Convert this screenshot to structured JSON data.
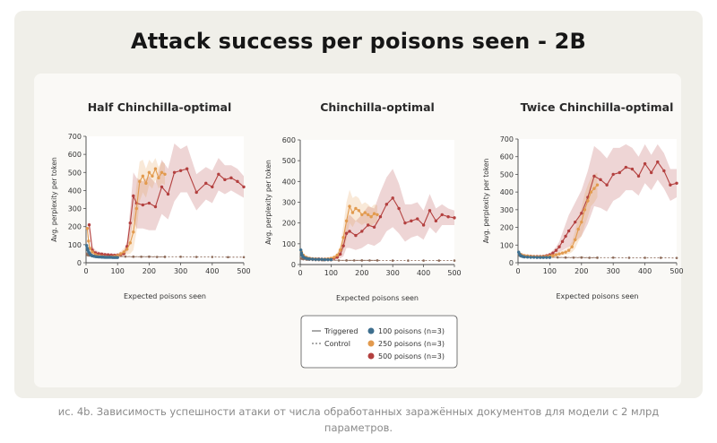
{
  "title": "Attack success per poisons seen - 2B",
  "caption": {
    "line1": "ис. 4b. Зависимость успешности атаки от числа обработанных заражённых документов для модели с 2 млрд",
    "line2": "параметров."
  },
  "legend": {
    "triggered": "Triggered",
    "control": "Control",
    "p100": "100 poisons (n=3)",
    "p250": "250 poisons (n=3)",
    "p500": "500 poisons (n=3)"
  },
  "colors": {
    "p100": "#3e6f8e",
    "p250": "#e29a4e",
    "p500": "#b3403f",
    "control": "#8d6b5a"
  },
  "chart_data": [
    {
      "type": "line",
      "title": "Half Chinchilla-optimal",
      "xlabel": "Expected poisons seen",
      "ylabel": "Avg. perplexity per token",
      "xlim": [
        0,
        500
      ],
      "ylim": [
        0,
        700
      ],
      "xticks": [
        0,
        100,
        200,
        300,
        400,
        500
      ],
      "yticks": [
        0,
        100,
        200,
        300,
        400,
        500,
        600,
        700
      ],
      "series": [
        {
          "name": "100 poisons (n=3)",
          "mode": "triggered",
          "x": [
            2,
            4,
            6,
            8,
            10,
            12,
            14,
            16,
            18,
            20,
            25,
            30,
            35,
            40,
            45,
            50,
            55,
            60,
            65,
            70,
            75,
            80,
            85,
            90,
            95,
            100
          ],
          "y": [
            95,
            80,
            70,
            60,
            55,
            50,
            45,
            42,
            40,
            38,
            36,
            34,
            33,
            32,
            32,
            31,
            31,
            30,
            30,
            30,
            30,
            30,
            29,
            29,
            29,
            29
          ],
          "band": [
            25,
            20,
            18,
            15,
            12,
            10,
            10,
            8,
            8,
            8,
            6,
            6,
            6,
            5,
            5,
            5,
            5,
            5,
            5,
            5,
            5,
            5,
            5,
            5,
            5,
            5
          ]
        },
        {
          "name": "250 poisons (n=3)",
          "mode": "triggered",
          "x": [
            4,
            8,
            12,
            20,
            30,
            40,
            50,
            60,
            70,
            80,
            90,
            100,
            110,
            120,
            130,
            140,
            150,
            160,
            170,
            180,
            190,
            200,
            210,
            220,
            230,
            240,
            250
          ],
          "y": [
            190,
            120,
            80,
            60,
            45,
            38,
            35,
            33,
            32,
            33,
            35,
            40,
            50,
            60,
            75,
            110,
            170,
            300,
            450,
            480,
            440,
            500,
            480,
            520,
            470,
            500,
            490
          ],
          "band": [
            30,
            25,
            20,
            15,
            10,
            8,
            6,
            6,
            6,
            6,
            8,
            10,
            15,
            20,
            30,
            60,
            100,
            130,
            110,
            90,
            80,
            70,
            70,
            60,
            60,
            60,
            60
          ]
        },
        {
          "name": "500 poisons (n=3)",
          "mode": "triggered",
          "x": [
            10,
            20,
            30,
            40,
            50,
            60,
            70,
            80,
            90,
            100,
            110,
            120,
            130,
            140,
            150,
            160,
            180,
            200,
            220,
            240,
            260,
            280,
            300,
            320,
            350,
            380,
            400,
            420,
            440,
            460,
            480,
            500
          ],
          "y": [
            210,
            70,
            55,
            50,
            48,
            45,
            44,
            43,
            42,
            43,
            45,
            50,
            90,
            220,
            370,
            330,
            320,
            330,
            310,
            420,
            380,
            500,
            510,
            520,
            390,
            440,
            420,
            490,
            460,
            470,
            450,
            420
          ],
          "band": [
            30,
            20,
            15,
            12,
            10,
            10,
            8,
            8,
            8,
            8,
            8,
            10,
            30,
            80,
            130,
            140,
            130,
            150,
            130,
            150,
            140,
            160,
            120,
            130,
            100,
            90,
            90,
            90,
            80,
            70,
            70,
            60
          ]
        },
        {
          "name": "Control 100",
          "mode": "control",
          "x": [
            2,
            10,
            20,
            30,
            40,
            50,
            60,
            70,
            80,
            90,
            100
          ],
          "y": [
            50,
            45,
            40,
            38,
            37,
            36,
            35,
            35,
            34,
            34,
            34
          ]
        },
        {
          "name": "Control 250",
          "mode": "control",
          "x": [
            5,
            25,
            50,
            75,
            100,
            125,
            150,
            175,
            200,
            225,
            250
          ],
          "y": [
            42,
            38,
            36,
            35,
            34,
            34,
            33,
            33,
            33,
            32,
            32
          ]
        },
        {
          "name": "Control 500",
          "mode": "control",
          "x": [
            10,
            50,
            100,
            150,
            200,
            250,
            300,
            350,
            400,
            450,
            500
          ],
          "y": [
            40,
            36,
            35,
            34,
            34,
            33,
            33,
            32,
            32,
            31,
            31
          ]
        }
      ]
    },
    {
      "type": "line",
      "title": "Chinchilla-optimal",
      "xlabel": "Expected poisons seen",
      "ylabel": "Avg. perplexity per token",
      "xlim": [
        0,
        500
      ],
      "ylim": [
        0,
        600
      ],
      "xticks": [
        0,
        100,
        200,
        300,
        400,
        500
      ],
      "yticks": [
        0,
        100,
        200,
        300,
        400,
        500,
        600
      ],
      "series": [
        {
          "name": "100 poisons (n=3)",
          "mode": "triggered",
          "x": [
            2,
            4,
            6,
            8,
            10,
            15,
            20,
            25,
            30,
            40,
            50,
            60,
            70,
            80,
            90,
            100
          ],
          "y": [
            70,
            55,
            45,
            40,
            36,
            32,
            30,
            28,
            27,
            26,
            25,
            25,
            25,
            24,
            24,
            24
          ],
          "band": [
            20,
            15,
            12,
            10,
            8,
            6,
            5,
            5,
            5,
            5,
            4,
            4,
            4,
            4,
            4,
            4
          ]
        },
        {
          "name": "250 poisons (n=3)",
          "mode": "triggered",
          "x": [
            4,
            10,
            20,
            30,
            40,
            50,
            60,
            70,
            80,
            90,
            100,
            110,
            120,
            130,
            140,
            150,
            160,
            170,
            180,
            190,
            200,
            210,
            220,
            230,
            240,
            250
          ],
          "y": [
            60,
            45,
            35,
            30,
            28,
            27,
            26,
            26,
            26,
            27,
            30,
            35,
            45,
            70,
            130,
            210,
            280,
            250,
            270,
            260,
            240,
            250,
            240,
            230,
            245,
            240
          ],
          "band": [
            15,
            10,
            8,
            6,
            5,
            5,
            5,
            5,
            5,
            5,
            6,
            8,
            12,
            25,
            60,
            90,
            80,
            70,
            60,
            60,
            50,
            50,
            50,
            45,
            45,
            45
          ]
        },
        {
          "name": "500 poisons (n=3)",
          "mode": "triggered",
          "x": [
            10,
            20,
            30,
            40,
            50,
            60,
            70,
            80,
            90,
            100,
            110,
            120,
            130,
            140,
            150,
            160,
            180,
            200,
            220,
            240,
            260,
            280,
            300,
            320,
            340,
            360,
            380,
            400,
            420,
            440,
            460,
            480,
            500
          ],
          "y": [
            40,
            32,
            30,
            28,
            27,
            27,
            26,
            26,
            27,
            28,
            30,
            35,
            50,
            90,
            150,
            160,
            140,
            160,
            190,
            180,
            230,
            290,
            320,
            270,
            200,
            210,
            220,
            190,
            260,
            210,
            240,
            230,
            225
          ],
          "band": [
            10,
            8,
            6,
            5,
            5,
            5,
            5,
            5,
            5,
            5,
            5,
            8,
            20,
            50,
            70,
            80,
            70,
            80,
            90,
            90,
            120,
            130,
            140,
            120,
            90,
            80,
            80,
            70,
            80,
            60,
            50,
            40,
            35
          ]
        },
        {
          "name": "Control 100",
          "mode": "control",
          "x": [
            2,
            10,
            20,
            30,
            40,
            50,
            60,
            70,
            80,
            90,
            100
          ],
          "y": [
            30,
            26,
            24,
            23,
            22,
            22,
            21,
            21,
            21,
            21,
            21
          ]
        },
        {
          "name": "Control 250",
          "mode": "control",
          "x": [
            5,
            25,
            50,
            75,
            100,
            125,
            150,
            175,
            200,
            225,
            250
          ],
          "y": [
            28,
            24,
            22,
            21,
            21,
            20,
            20,
            20,
            20,
            20,
            20
          ]
        },
        {
          "name": "Control 500",
          "mode": "control",
          "x": [
            10,
            50,
            100,
            150,
            200,
            250,
            300,
            350,
            400,
            450,
            500
          ],
          "y": [
            26,
            22,
            21,
            20,
            20,
            20,
            19,
            19,
            19,
            19,
            19
          ]
        }
      ]
    },
    {
      "type": "line",
      "title": "Twice Chinchilla-optimal",
      "xlabel": "Expected poisons seen",
      "ylabel": "Avg. perplexity per token",
      "xlim": [
        0,
        500
      ],
      "ylim": [
        0,
        700
      ],
      "xticks": [
        0,
        100,
        200,
        300,
        400,
        500
      ],
      "yticks": [
        0,
        100,
        200,
        300,
        400,
        500,
        600,
        700
      ],
      "series": [
        {
          "name": "100 poisons (n=3)",
          "mode": "triggered",
          "x": [
            2,
            4,
            6,
            8,
            10,
            15,
            20,
            30,
            40,
            50,
            60,
            70,
            80,
            90,
            100
          ],
          "y": [
            60,
            50,
            45,
            40,
            38,
            35,
            33,
            32,
            31,
            31,
            30,
            30,
            30,
            30,
            30
          ],
          "band": [
            15,
            12,
            10,
            8,
            7,
            6,
            5,
            5,
            5,
            5,
            5,
            5,
            5,
            5,
            5
          ]
        },
        {
          "name": "250 poisons (n=3)",
          "mode": "triggered",
          "x": [
            5,
            10,
            20,
            30,
            40,
            50,
            60,
            70,
            80,
            90,
            100,
            110,
            120,
            130,
            140,
            150,
            160,
            170,
            180,
            190,
            200,
            210,
            220,
            230,
            240,
            250
          ],
          "y": [
            50,
            45,
            40,
            38,
            36,
            35,
            34,
            34,
            35,
            36,
            38,
            40,
            45,
            50,
            55,
            60,
            70,
            90,
            130,
            190,
            230,
            300,
            350,
            400,
            420,
            440
          ],
          "band": [
            12,
            10,
            8,
            6,
            5,
            5,
            5,
            5,
            5,
            5,
            6,
            6,
            8,
            10,
            12,
            15,
            20,
            30,
            50,
            70,
            80,
            90,
            90,
            80,
            80,
            70
          ]
        },
        {
          "name": "500 poisons (n=3)",
          "mode": "triggered",
          "x": [
            10,
            20,
            30,
            40,
            50,
            60,
            70,
            80,
            90,
            100,
            110,
            120,
            130,
            140,
            150,
            160,
            180,
            200,
            220,
            240,
            260,
            280,
            300,
            320,
            340,
            360,
            380,
            400,
            420,
            440,
            460,
            480,
            500
          ],
          "y": [
            45,
            40,
            38,
            37,
            36,
            36,
            36,
            37,
            40,
            45,
            55,
            70,
            90,
            120,
            150,
            180,
            230,
            280,
            370,
            490,
            470,
            440,
            500,
            510,
            540,
            530,
            490,
            560,
            510,
            570,
            520,
            440,
            450
          ],
          "band": [
            10,
            8,
            6,
            6,
            5,
            5,
            5,
            6,
            8,
            10,
            15,
            20,
            30,
            50,
            70,
            90,
            110,
            130,
            150,
            170,
            160,
            150,
            150,
            140,
            130,
            120,
            110,
            110,
            100,
            100,
            100,
            90,
            80
          ]
        },
        {
          "name": "Control 100",
          "mode": "control",
          "x": [
            2,
            10,
            20,
            30,
            40,
            50,
            60,
            70,
            80,
            90,
            100
          ],
          "y": [
            45,
            38,
            35,
            33,
            32,
            31,
            31,
            30,
            30,
            30,
            30
          ]
        },
        {
          "name": "Control 250",
          "mode": "control",
          "x": [
            5,
            25,
            50,
            75,
            100,
            125,
            150,
            175,
            200,
            225,
            250
          ],
          "y": [
            40,
            34,
            32,
            31,
            30,
            30,
            29,
            29,
            29,
            28,
            28
          ]
        },
        {
          "name": "Control 500",
          "mode": "control",
          "x": [
            10,
            50,
            100,
            150,
            200,
            250,
            300,
            350,
            400,
            450,
            500
          ],
          "y": [
            38,
            32,
            31,
            30,
            30,
            29,
            29,
            28,
            28,
            28,
            27
          ]
        }
      ]
    }
  ]
}
